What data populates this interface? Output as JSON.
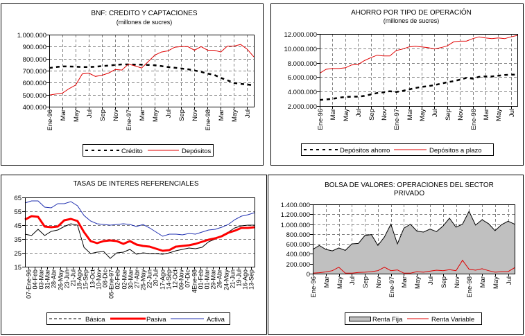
{
  "chart_data": [
    {
      "id": "bnf",
      "type": "line",
      "title": "BNF: CREDITO Y CAPTACIONES",
      "subtitle": "(millones de sucres)",
      "xlabel": "",
      "ylabel": "",
      "ylim": [
        400000,
        1000000
      ],
      "yticks": [
        "400.000",
        "500.000",
        "600.000",
        "700.000",
        "800.000",
        "900.000",
        "1.000.000"
      ],
      "ytick_values": [
        400000,
        500000,
        600000,
        700000,
        800000,
        900000,
        1000000
      ],
      "grid": true,
      "x_tick_labels": [
        "Ene-96",
        "Mar",
        "May",
        "Jul",
        "Sep",
        "Nov",
        "Ene-97",
        "Mar",
        "May",
        "Jul",
        "Sep",
        "Nov",
        "Ene-98",
        "Mar",
        "May",
        "Jul"
      ],
      "x_tick_every": 2,
      "x": [
        "Ene-96",
        "Feb-96",
        "Mar-96",
        "Abr-96",
        "May-96",
        "Jun-96",
        "Jul-96",
        "Ago-96",
        "Sep-96",
        "Oct-96",
        "Nov-96",
        "Dic-96",
        "Ene-97",
        "Feb-97",
        "Mar-97",
        "Abr-97",
        "May-97",
        "Jun-97",
        "Jul-97",
        "Ago-97",
        "Sep-97",
        "Oct-97",
        "Nov-97",
        "Dic-97",
        "Ene-98",
        "Feb-98",
        "Mar-98",
        "Abr-98",
        "May-98",
        "Jun-98",
        "Jul-98",
        "Ago-98"
      ],
      "series": [
        {
          "name": "Crédito",
          "style": "dashed",
          "color": "#000000",
          "values": [
            722000,
            730000,
            735000,
            735000,
            733000,
            730000,
            730000,
            733000,
            738000,
            742000,
            748000,
            752000,
            752000,
            750000,
            750000,
            748000,
            745000,
            738000,
            730000,
            725000,
            718000,
            712000,
            702000,
            690000,
            675000,
            665000,
            640000,
            620000,
            598000,
            590000,
            585000,
            578000
          ]
        },
        {
          "name": "Depósitos",
          "style": "solid",
          "color": "#e00000",
          "values": [
            497000,
            505000,
            513000,
            550000,
            580000,
            673000,
            680000,
            652000,
            662000,
            680000,
            710000,
            705000,
            755000,
            740000,
            722000,
            775000,
            830000,
            855000,
            865000,
            895000,
            900000,
            900000,
            870000,
            900000,
            870000,
            870000,
            855000,
            905000,
            905000,
            918000,
            878000,
            815000
          ]
        }
      ],
      "legend": {
        "position": "bottom",
        "items": [
          "Crédito",
          "Depósitos"
        ]
      }
    },
    {
      "id": "ahorro",
      "type": "line",
      "title": "AHORRO POR TIPO DE OPERACIÓN",
      "subtitle": "(millones de sucres)",
      "xlabel": "",
      "ylabel": "",
      "ylim": [
        2000000,
        12000000
      ],
      "yticks": [
        "2.000.000",
        "4.000.000",
        "6.000.000",
        "8.000.000",
        "10.000.000",
        "12.000.000"
      ],
      "ytick_values": [
        2000000,
        4000000,
        6000000,
        8000000,
        10000000,
        12000000
      ],
      "grid": true,
      "x_tick_labels": [
        "Ene-96",
        "Mar",
        "May",
        "Jul",
        "Sep",
        "Nov",
        "Ene-97",
        "Mar",
        "May",
        "Jul",
        "Sep",
        "Nov",
        "Ene-98",
        "Mar",
        "May",
        "Jul"
      ],
      "x_tick_every": 2,
      "x": [
        "Ene-96",
        "Feb-96",
        "Mar-96",
        "Abr-96",
        "May-96",
        "Jun-96",
        "Jul-96",
        "Ago-96",
        "Sep-96",
        "Oct-96",
        "Nov-96",
        "Dic-96",
        "Ene-97",
        "Feb-97",
        "Mar-97",
        "Abr-97",
        "May-97",
        "Jun-97",
        "Jul-97",
        "Ago-97",
        "Sep-97",
        "Oct-97",
        "Nov-97",
        "Dic-97",
        "Ene-98",
        "Feb-98",
        "Mar-98",
        "Abr-98",
        "May-98",
        "Jun-98",
        "Jul-98",
        "Ago-98"
      ],
      "series": [
        {
          "name": "Depósitos ahorro",
          "style": "dashed",
          "color": "#000000",
          "values": [
            2850000,
            2900000,
            3000000,
            3150000,
            3250000,
            3300000,
            3300000,
            3400000,
            3600000,
            3800000,
            3900000,
            4050000,
            3950000,
            4100000,
            4300000,
            4500000,
            4650000,
            4750000,
            4900000,
            5100000,
            5300000,
            5450000,
            5650000,
            5900000,
            5800000,
            6050000,
            6100000,
            6100000,
            6200000,
            6300000,
            6350000,
            6350000
          ]
        },
        {
          "name": "Depósitos a plazo",
          "style": "solid",
          "color": "#e00000",
          "values": [
            6550000,
            7100000,
            7200000,
            7200000,
            7300000,
            7700000,
            7750000,
            8300000,
            8700000,
            9050000,
            8950000,
            8950000,
            9700000,
            9900000,
            10200000,
            10300000,
            10200000,
            10100000,
            9900000,
            10100000,
            10350000,
            10900000,
            11000000,
            11000000,
            11350000,
            11600000,
            11450000,
            11350000,
            11450000,
            11350000,
            11600000,
            11800000
          ]
        }
      ],
      "legend": {
        "position": "bottom",
        "items": [
          "Depósitos ahorro",
          "Depósitos a plazo"
        ]
      }
    },
    {
      "id": "tasas",
      "type": "line",
      "title": "TASAS DE INTERES REFERENCIALES",
      "subtitle": "",
      "xlabel": "",
      "ylabel": "",
      "ylim": [
        15,
        65
      ],
      "yticks": [
        "15",
        "25",
        "35",
        "45",
        "55",
        "65"
      ],
      "ytick_values": [
        15,
        25,
        35,
        45,
        55,
        65
      ],
      "grid": true,
      "x_tick_labels": [
        "07-Ene-96",
        "04-Feb",
        "03-Mar",
        "31-Mar",
        "28-Abr",
        "26-May",
        "23-Jun",
        "21-Jul",
        "18-Ago",
        "15-Sep",
        "13-Oct",
        "10-Nov",
        "08-Dic",
        "05-Ene-97",
        "02-Feb",
        "02-Mar",
        "30-Mar",
        "27-Abr",
        "25-May",
        "22-Jun",
        "20-Jul",
        "17-Ago",
        "14-Sep",
        "12-Oct",
        "09-Nov",
        "07-Dic",
        "4Ene-98",
        "01-Feb",
        "01-Mar",
        "29-Mar",
        "26-Abr",
        "24-May",
        "21-Jun",
        "19-Jul",
        "16-Ago",
        "13-Sep"
      ],
      "series": [
        {
          "name": "Básica",
          "style": "dashed-thin",
          "color": "#000000",
          "values": [
            38.5,
            37.5,
            42,
            37.5,
            40.5,
            41.5,
            44,
            46,
            45,
            29,
            24.5,
            25.5,
            26,
            21,
            25,
            25.5,
            27.5,
            24,
            25,
            24.5,
            24.5,
            24,
            25,
            26.5,
            27.5,
            28.5,
            28,
            29,
            33,
            35,
            37.5,
            40,
            43,
            44.5,
            45,
            45
          ]
        },
        {
          "name": "Pasiva",
          "style": "thick",
          "color": "#ff0000",
          "values": [
            49,
            51.5,
            51,
            44,
            43.5,
            44,
            48.5,
            49.5,
            48,
            40,
            33.5,
            32,
            33.5,
            34,
            33.5,
            31.5,
            33.5,
            31,
            30,
            29.5,
            28,
            26.5,
            27,
            29.5,
            30,
            30.5,
            31.5,
            33,
            34.5,
            35.5,
            37,
            39.5,
            41,
            43,
            43,
            43.5
          ]
        },
        {
          "name": "Activa",
          "style": "solid",
          "color": "#2030b0",
          "values": [
            61,
            62.5,
            62.5,
            58,
            57.5,
            60.5,
            60.5,
            62,
            59,
            52,
            48,
            46,
            45.5,
            45,
            45.5,
            46,
            45.5,
            44,
            45.5,
            43,
            40,
            37,
            38.5,
            38.5,
            38,
            39,
            38.5,
            40,
            41.5,
            42,
            43.5,
            45.5,
            49,
            51.5,
            52.5,
            54
          ]
        }
      ],
      "legend": {
        "position": "bottom",
        "items": [
          "Básica",
          "Pasiva",
          "Activa"
        ]
      }
    },
    {
      "id": "bolsa",
      "type": "area",
      "title": "BOLSA DE VALORES:  OPERACIONES DEL SECTOR",
      "subtitle": "PRIVADO",
      "xlabel": "",
      "ylabel": "",
      "ylim": [
        0,
        1400000
      ],
      "yticks": [
        "0",
        "200.000",
        "400.000",
        "600.000",
        "800.000",
        "1.000.000",
        "1.200.000",
        "1.400.000"
      ],
      "ytick_values": [
        0,
        200000,
        400000,
        600000,
        800000,
        1000000,
        1200000,
        1400000
      ],
      "grid": true,
      "x_tick_labels": [
        "Ene-96",
        "Mar",
        "May",
        "Jul",
        "Sep",
        "Nov",
        "Ene-97",
        "Mar",
        "May",
        "Jul",
        "Sep",
        "Nov",
        "Ene-98",
        "Mar",
        "May",
        "Jul"
      ],
      "x_tick_every": 2,
      "x": [
        "Ene-96",
        "Feb-96",
        "Mar-96",
        "Abr-96",
        "May-96",
        "Jun-96",
        "Jul-96",
        "Ago-96",
        "Sep-96",
        "Oct-96",
        "Nov-96",
        "Dic-96",
        "Ene-97",
        "Feb-97",
        "Mar-97",
        "Abr-97",
        "May-97",
        "Jun-97",
        "Jul-97",
        "Ago-97",
        "Sep-97",
        "Oct-97",
        "Nov-97",
        "Dic-97",
        "Ene-98",
        "Feb-98",
        "Mar-98",
        "Abr-98",
        "May-98",
        "Jun-98",
        "Jul-98",
        "Ago-98"
      ],
      "series": [
        {
          "name": "Renta Fija",
          "style": "area",
          "color": "#c0c0c0",
          "values": [
            490000,
            570000,
            490000,
            460000,
            520000,
            470000,
            600000,
            610000,
            770000,
            790000,
            570000,
            740000,
            1000000,
            600000,
            920000,
            1000000,
            860000,
            840000,
            900000,
            850000,
            960000,
            1120000,
            940000,
            1000000,
            1260000,
            980000,
            1090000,
            1010000,
            870000,
            990000,
            1060000,
            1000000
          ]
        },
        {
          "name": "Renta Variable",
          "style": "solid",
          "color": "#e00000",
          "values": [
            10000,
            20000,
            35000,
            60000,
            130000,
            10000,
            10000,
            25000,
            30000,
            40000,
            60000,
            130000,
            60000,
            75000,
            10000,
            10000,
            40000,
            30000,
            50000,
            70000,
            60000,
            80000,
            60000,
            270000,
            90000,
            70000,
            100000,
            60000,
            30000,
            40000,
            40000,
            120000
          ]
        }
      ],
      "legend": {
        "position": "bottom",
        "items": [
          "Renta Fija",
          "Renta Variable"
        ]
      }
    }
  ]
}
